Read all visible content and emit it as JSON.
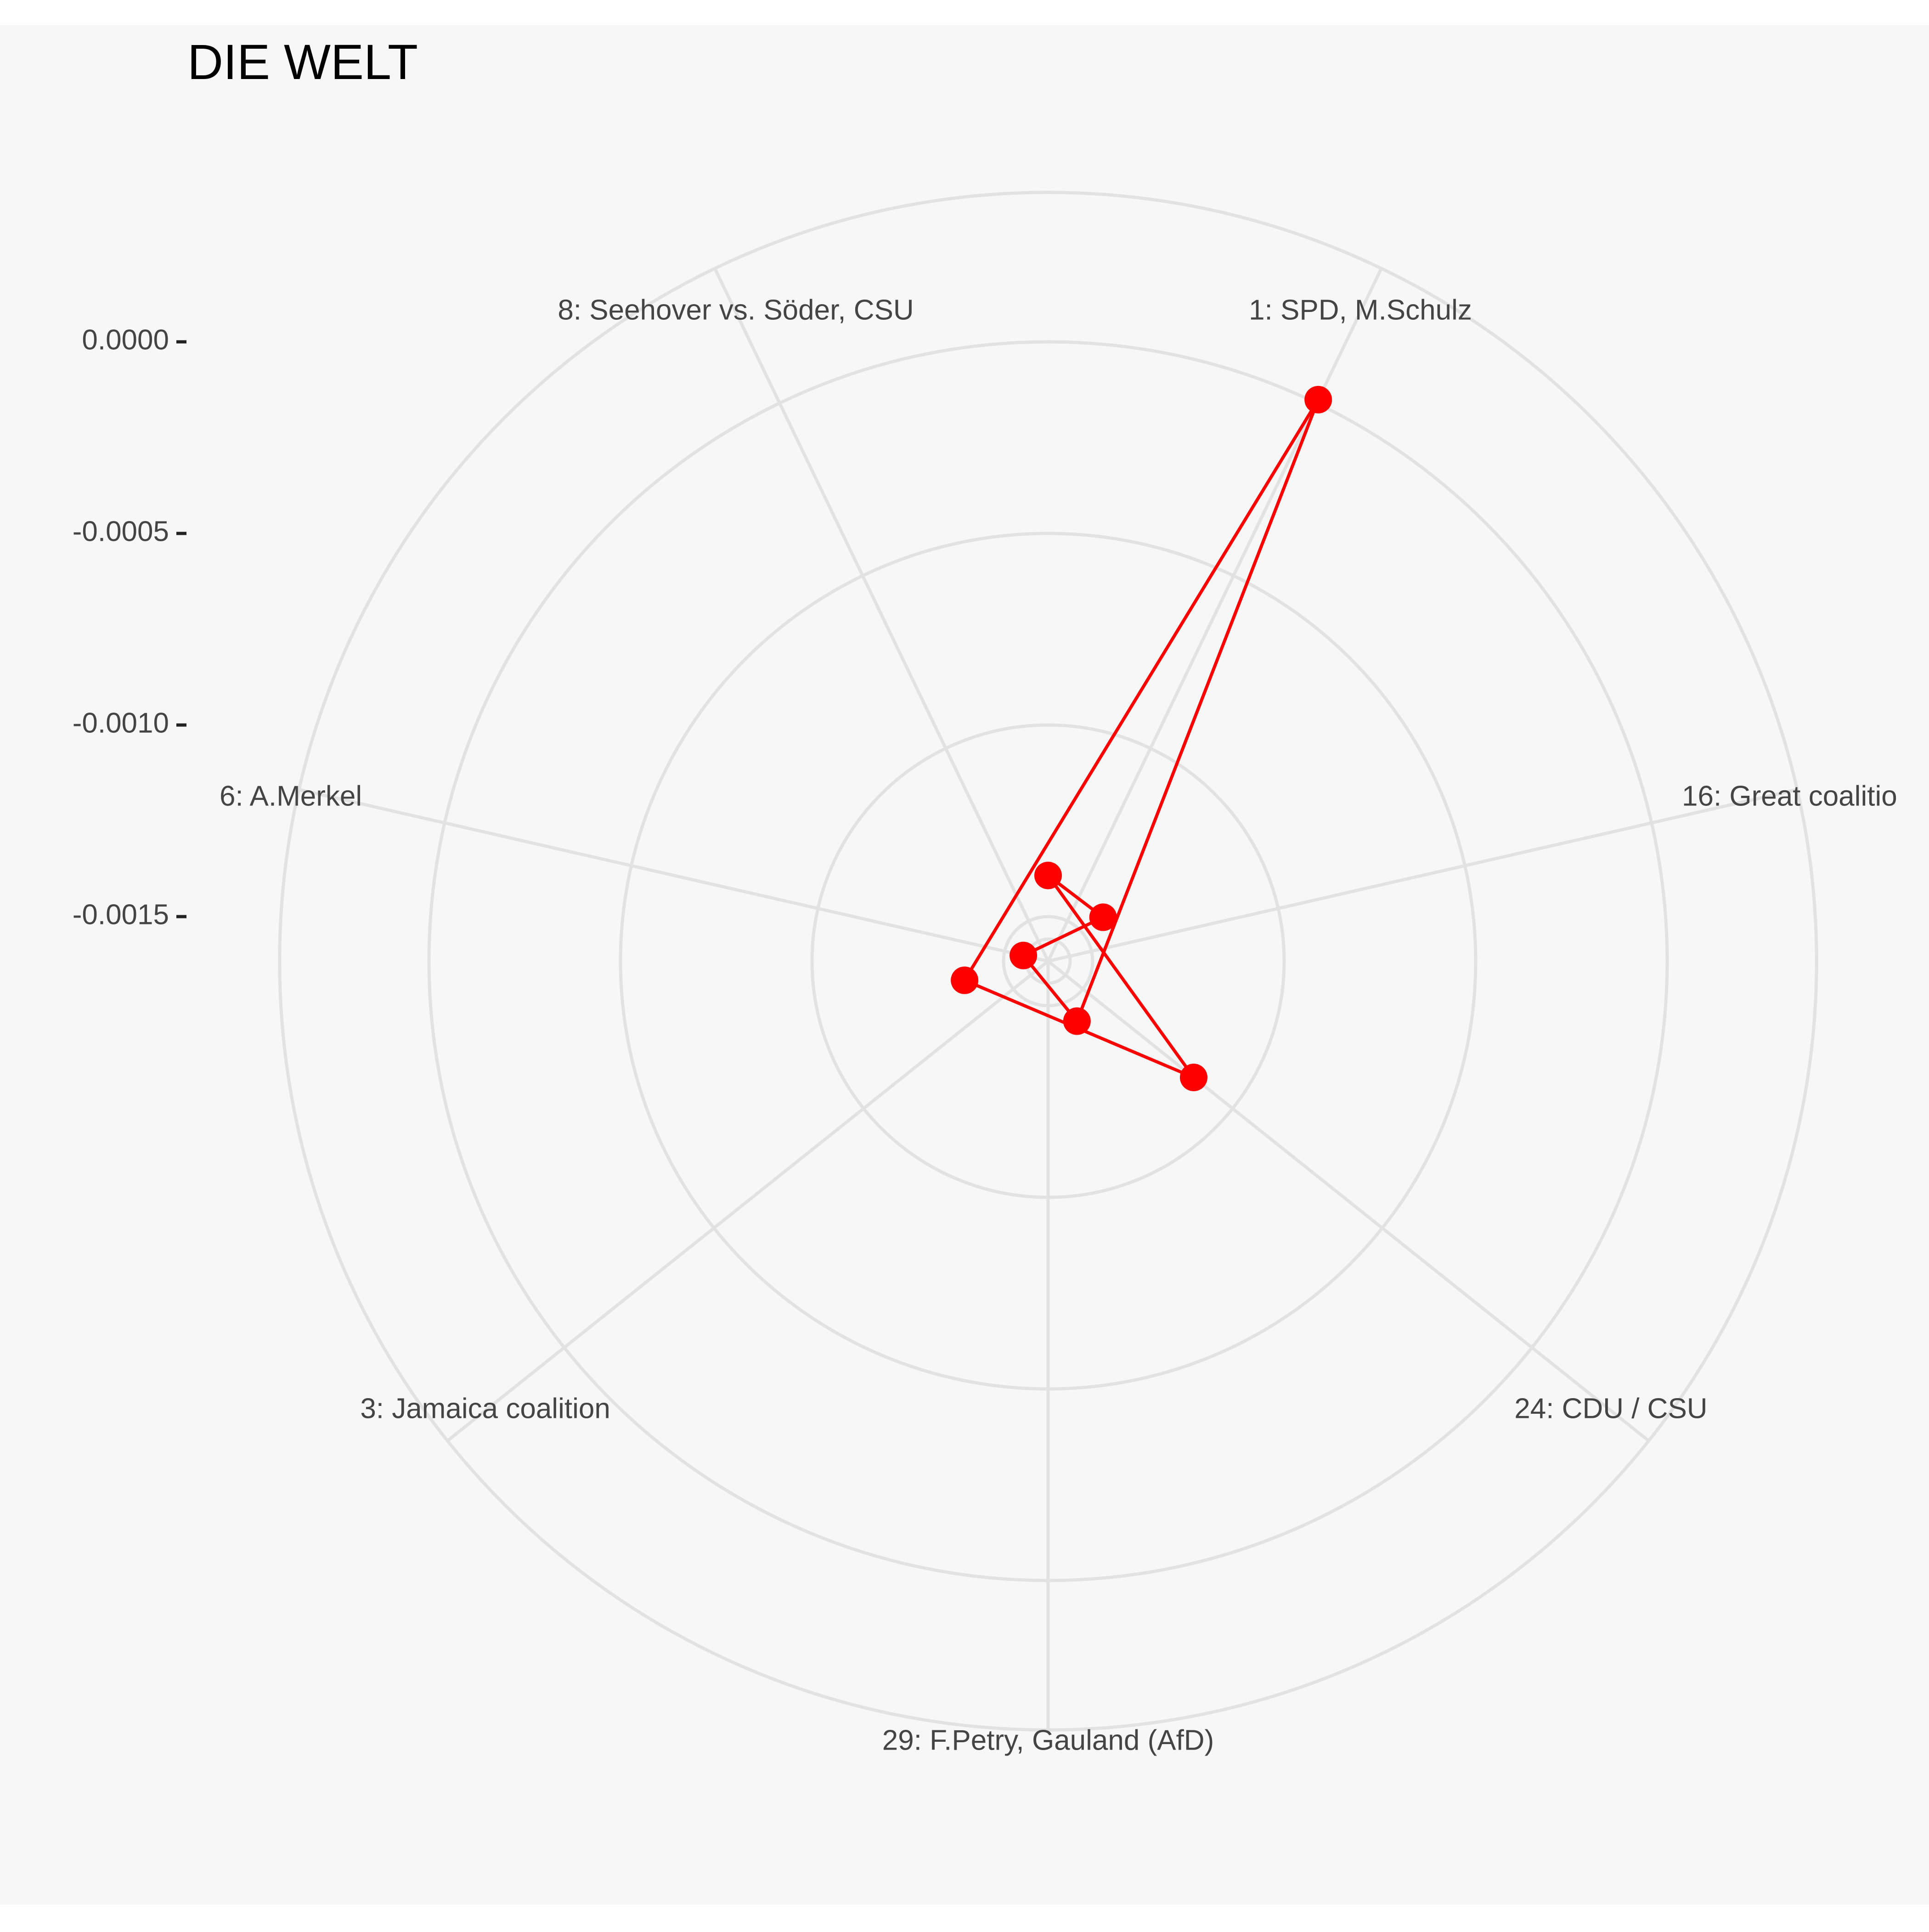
{
  "chart_data": {
    "type": "radar",
    "title": "DIE WELT",
    "categories": [
      "1: SPD, M.Schulz",
      "16: Great coalitio",
      "24: CDU / CSU",
      "29: F.Petry, Gauland (AfD)",
      "3: Jamaica coalition",
      "6: A.Merkel",
      "8: Seehover vs. Söder, CSU"
    ],
    "series": [
      {
        "name": "DIE WELT",
        "color": "#ff0000",
        "values": [
          1e-05,
          -0.00184,
          -0.00113,
          -0.00184,
          -0.0018,
          -0.00155,
          -0.00179
        ]
      }
    ],
    "y_tick_labels": [
      "0.0000",
      "-0.0005",
      "-0.0010",
      "-0.0015"
    ],
    "y_ticks": [
      0.0,
      -0.0005,
      -0.001,
      -0.0015
    ],
    "ylim": [
      -0.002,
      0.0004
    ],
    "grid": true,
    "background_color": "#f7f7f7",
    "grid_color": "#e2e2e2"
  }
}
